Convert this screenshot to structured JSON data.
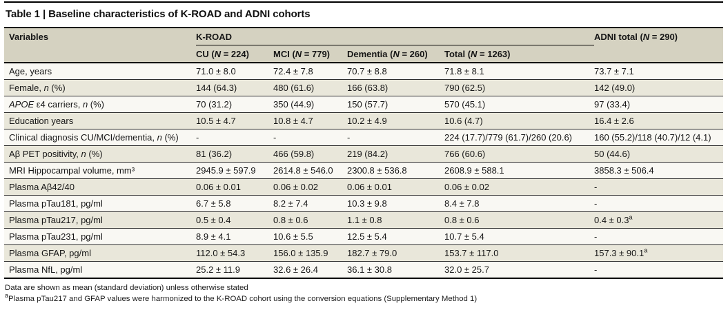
{
  "title": "Table 1 | Baseline characteristics of K-ROAD and ADNI cohorts",
  "colors": {
    "header_bg": "#d5d2c1",
    "stripe_bg": "#e9e7da",
    "row_bg": "#f9f8f3",
    "rule": "#000000"
  },
  "table": {
    "header": {
      "variables": "Variables",
      "group": "K-ROAD",
      "adni": "ADNI total (*N* = 290)",
      "subcols": [
        "CU (*N* = 224)",
        "MCI (*N* = 779)",
        "Dementia (*N* = 260)",
        "Total (*N* = 1263)"
      ]
    },
    "rows": [
      {
        "label": "Age, years",
        "values": [
          "71.0 ± 8.0",
          "72.4 ± 7.8",
          "70.7 ± 8.8",
          "71.8 ± 8.1",
          "73.7 ± 7.1"
        ]
      },
      {
        "label": "Female, *n* (%)",
        "values": [
          "144 (64.3)",
          "480 (61.6)",
          "166 (63.8)",
          "790 (62.5)",
          "142 (49.0)"
        ]
      },
      {
        "label": "*APOE* ε4 carriers, *n* (%)",
        "values": [
          "70 (31.2)",
          "350 (44.9)",
          "150 (57.7)",
          "570 (45.1)",
          "97 (33.4)"
        ]
      },
      {
        "label": "Education years",
        "values": [
          "10.5 ± 4.7",
          "10.8 ± 4.7",
          "10.2 ± 4.9",
          "10.6 (4.7)",
          "16.4 ± 2.6"
        ]
      },
      {
        "label": "Clinical diagnosis CU/MCI/dementia, *n* (%)",
        "values": [
          "-",
          "-",
          "-",
          "224 (17.7)/779 (61.7)/260 (20.6)",
          "160 (55.2)/118 (40.7)/12 (4.1)"
        ]
      },
      {
        "label": "Aβ PET positivity, *n* (%)",
        "values": [
          "81 (36.2)",
          "466 (59.8)",
          "219 (84.2)",
          "766 (60.6)",
          "50 (44.6)"
        ]
      },
      {
        "label": "MRI Hippocampal volume, mm³",
        "values": [
          "2945.9 ± 597.9",
          "2614.8 ± 546.0",
          "2300.8 ± 536.8",
          "2608.9 ± 588.1",
          "3858.3 ± 506.4"
        ]
      },
      {
        "label": "Plasma Aβ42/40",
        "values": [
          "0.06 ± 0.01",
          "0.06 ± 0.02",
          "0.06 ± 0.01",
          "0.06 ± 0.02",
          "-"
        ]
      },
      {
        "label": "Plasma pTau181, pg/ml",
        "values": [
          "6.7 ± 5.8",
          "8.2 ± 7.4",
          "10.3 ± 9.8",
          "8.4 ± 7.8",
          "-"
        ]
      },
      {
        "label": "Plasma pTau217, pg/ml",
        "values": [
          "0.5 ± 0.4",
          "0.8 ± 0.6",
          "1.1 ± 0.8",
          "0.8 ± 0.6",
          "0.4 ± 0.3^a^"
        ]
      },
      {
        "label": "Plasma pTau231, pg/ml",
        "values": [
          "8.9 ± 4.1",
          "10.6 ± 5.5",
          "12.5 ± 5.4",
          "10.7 ± 5.4",
          "-"
        ]
      },
      {
        "label": "Plasma GFAP, pg/ml",
        "values": [
          "112.0 ± 54.3",
          "156.0 ± 135.9",
          "182.7 ± 79.0",
          "153.7 ± 117.0",
          "157.3 ± 90.1^a^"
        ]
      },
      {
        "label": "Plasma NfL, pg/ml",
        "values": [
          "25.2 ± 11.9",
          "32.6 ± 26.4",
          "36.1 ± 30.8",
          "32.0 ± 25.7",
          "-"
        ]
      }
    ]
  },
  "footnotes": [
    "Data are shown as mean (standard deviation) unless otherwise stated",
    "^a^Plasma pTau217 and GFAP values were harmonized to the K-ROAD cohort using the conversion equations (Supplementary Method 1)"
  ]
}
